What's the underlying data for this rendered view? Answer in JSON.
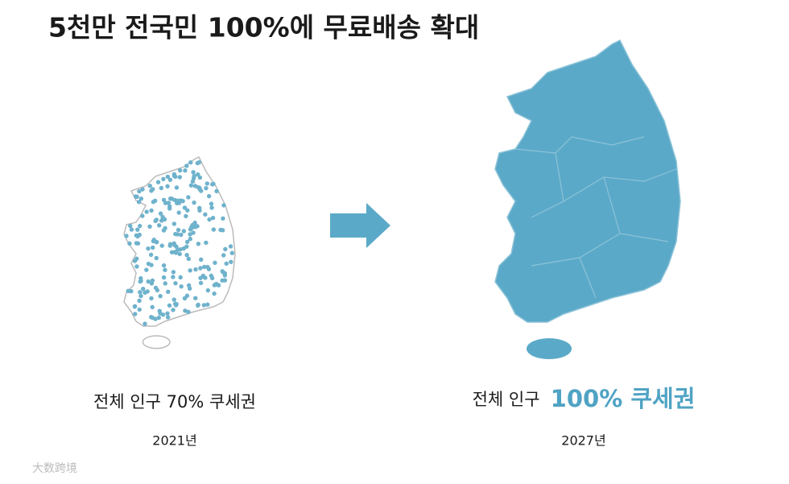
{
  "header": {
    "title": "5천만 전국민 100%에 무료배송 확대"
  },
  "left": {
    "caption": "전체 인구 70% 쿠세권",
    "year": "2021년"
  },
  "right": {
    "caption_prefix": "전체 인구",
    "caption_highlight": "100% 쿠세권",
    "year": "2027년"
  },
  "watermark": "大数跨境"
}
